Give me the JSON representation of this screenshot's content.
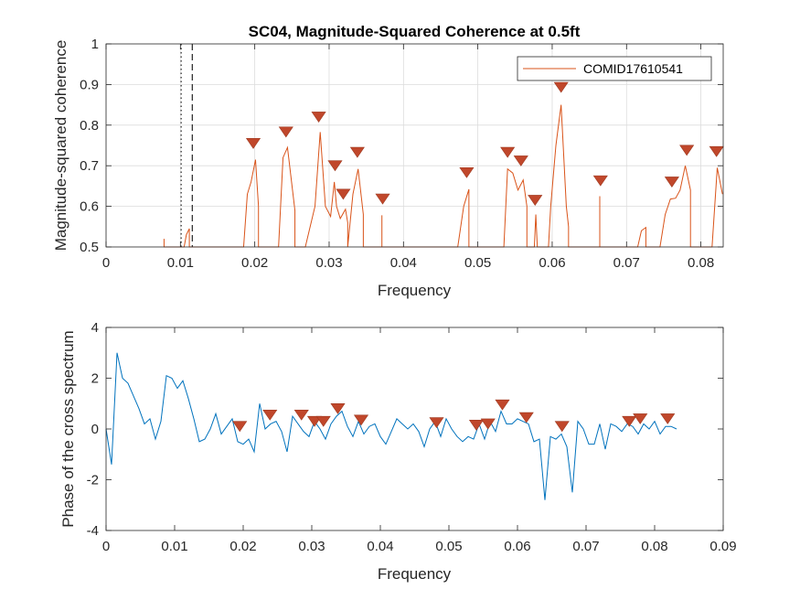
{
  "colors": {
    "coherence": "#D95319",
    "phase": "#0072BD",
    "marker": "#C0472B",
    "grid": "#DCDCDC",
    "axis": "#262626",
    "vline": "#333333"
  },
  "chart_data": [
    {
      "type": "line",
      "title": "SC04, Magnitude-Squared Coherence at 0.5ft",
      "xlabel": "Frequency",
      "ylabel": "Magnitude-squared coherence",
      "xlim": [
        0,
        0.083
      ],
      "ylim": [
        0.5,
        1
      ],
      "xticks": [
        0,
        0.01,
        0.02,
        0.03,
        0.04,
        0.05,
        0.06,
        0.07,
        0.08
      ],
      "xtick_labels": [
        "0",
        "0.01",
        "0.02",
        "0.03",
        "0.04",
        "0.05",
        "0.06",
        "0.07",
        "0.08"
      ],
      "yticks": [
        0.5,
        0.6,
        0.7,
        0.8,
        0.9,
        1
      ],
      "ytick_labels": [
        "0.5",
        "0.6",
        "0.7",
        "0.8",
        "0.9",
        "1"
      ],
      "grid": true,
      "legend": {
        "placement": "top-right",
        "entries": [
          "COMID17610541"
        ]
      },
      "series": [
        {
          "name": "COMID17610541",
          "x": [
            0.0078,
            0.0078,
            0.0078,
            0.0105,
            0.0108,
            0.0112,
            0.0112,
            0.0185,
            0.019,
            0.0195,
            0.0201,
            0.0205,
            0.0205,
            0.0232,
            0.0238,
            0.0244,
            0.0254,
            0.0254,
            0.0268,
            0.0281,
            0.0288,
            0.0295,
            0.0302,
            0.0307,
            0.031,
            0.0315,
            0.0322,
            0.0325,
            0.0325,
            0.0332,
            0.0339,
            0.0346,
            0.0346,
            0.0371,
            0.0371,
            0.0371,
            0.0473,
            0.0481,
            0.0488,
            0.0488,
            0.0535,
            0.054,
            0.0547,
            0.0554,
            0.0561,
            0.0566,
            0.0566,
            0.0576,
            0.0578,
            0.058,
            0.0595,
            0.0598,
            0.0605,
            0.0612,
            0.0619,
            0.0622,
            0.0622,
            0.0664,
            0.0664,
            0.0664,
            0.0715,
            0.072,
            0.0726,
            0.0726,
            0.0745,
            0.0752,
            0.0759,
            0.0766,
            0.0772,
            0.0779,
            0.0786,
            0.0786,
            0.0815,
            0.0822,
            0.0829
          ],
          "y": [
            0.5,
            0.52,
            0.5,
            0.5,
            0.53,
            0.545,
            0.5,
            0.5,
            0.63,
            0.66,
            0.715,
            0.6,
            0.5,
            0.5,
            0.72,
            0.745,
            0.59,
            0.5,
            0.5,
            0.6,
            0.783,
            0.6,
            0.575,
            0.66,
            0.6,
            0.57,
            0.593,
            0.56,
            0.5,
            0.63,
            0.692,
            0.58,
            0.5,
            0.5,
            0.578,
            0.5,
            0.5,
            0.6,
            0.642,
            0.5,
            0.5,
            0.692,
            0.682,
            0.64,
            0.665,
            0.6,
            0.5,
            0.5,
            0.58,
            0.5,
            0.5,
            0.6,
            0.75,
            0.85,
            0.6,
            0.55,
            0.5,
            0.5,
            0.625,
            0.5,
            0.5,
            0.54,
            0.548,
            0.5,
            0.5,
            0.58,
            0.618,
            0.62,
            0.64,
            0.7,
            0.64,
            0.5,
            0.5,
            0.695,
            0.63
          ],
          "color": "#D95319"
        }
      ],
      "markers": {
        "x": [
          0.0198,
          0.0242,
          0.0286,
          0.0308,
          0.0319,
          0.0338,
          0.0372,
          0.0485,
          0.054,
          0.0558,
          0.0577,
          0.0612,
          0.0665,
          0.0761,
          0.0781,
          0.0821
        ],
        "y": [
          0.755,
          0.783,
          0.82,
          0.7,
          0.63,
          0.733,
          0.618,
          0.683,
          0.733,
          0.712,
          0.615,
          0.893,
          0.663,
          0.66,
          0.738,
          0.735
        ]
      },
      "reference_lines": [
        {
          "x": 0.0101,
          "style": "dotted"
        },
        {
          "x": 0.0116,
          "style": "dashed"
        }
      ]
    },
    {
      "type": "line",
      "title": "",
      "xlabel": "Frequency",
      "ylabel": "Phase of the cross spectrum",
      "xlim": [
        0,
        0.09
      ],
      "ylim": [
        -4,
        4
      ],
      "xticks": [
        0,
        0.01,
        0.02,
        0.03,
        0.04,
        0.05,
        0.06,
        0.07,
        0.08,
        0.09
      ],
      "xtick_labels": [
        "0",
        "0.01",
        "0.02",
        "0.03",
        "0.04",
        "0.05",
        "0.06",
        "0.07",
        "0.08",
        "0.09"
      ],
      "yticks": [
        -4,
        -2,
        0,
        2,
        4
      ],
      "ytick_labels": [
        "-4",
        "-2",
        "0",
        "2",
        "4"
      ],
      "grid": false,
      "series": [
        {
          "x": [
            0,
            0.0008,
            0.0016,
            0.0024,
            0.0032,
            0.004,
            0.0048,
            0.0056,
            0.0064,
            0.0072,
            0.008,
            0.0088,
            0.0096,
            0.0104,
            0.0112,
            0.012,
            0.0128,
            0.0136,
            0.0144,
            0.0152,
            0.016,
            0.0168,
            0.0176,
            0.0184,
            0.0192,
            0.02,
            0.0208,
            0.0216,
            0.0224,
            0.0232,
            0.024,
            0.0248,
            0.0256,
            0.0264,
            0.0272,
            0.028,
            0.0288,
            0.0296,
            0.0304,
            0.0312,
            0.032,
            0.0328,
            0.0336,
            0.0344,
            0.0352,
            0.036,
            0.0368,
            0.0376,
            0.0384,
            0.0392,
            0.04,
            0.0408,
            0.0416,
            0.0424,
            0.0432,
            0.044,
            0.0448,
            0.0456,
            0.0464,
            0.0472,
            0.048,
            0.0488,
            0.0496,
            0.0504,
            0.0512,
            0.052,
            0.0528,
            0.0536,
            0.0544,
            0.0552,
            0.056,
            0.0568,
            0.0576,
            0.0584,
            0.0592,
            0.06,
            0.0608,
            0.0616,
            0.0624,
            0.0632,
            0.064,
            0.0648,
            0.0656,
            0.0664,
            0.0672,
            0.068,
            0.0688,
            0.0696,
            0.0704,
            0.0712,
            0.072,
            0.0728,
            0.0736,
            0.0744,
            0.0752,
            0.076,
            0.0768,
            0.0776,
            0.0784,
            0.0792,
            0.08,
            0.0808,
            0.0816,
            0.0824,
            0.0832
          ],
          "y": [
            0.0,
            -1.4,
            3.0,
            2.0,
            1.8,
            1.3,
            0.8,
            0.2,
            0.4,
            -0.4,
            0.3,
            2.1,
            2.0,
            1.6,
            1.9,
            1.2,
            0.4,
            -0.5,
            -0.4,
            0.0,
            0.6,
            -0.2,
            0.1,
            0.4,
            -0.5,
            -0.6,
            -0.4,
            -0.9,
            1.0,
            0.0,
            0.2,
            0.3,
            -0.1,
            -0.9,
            0.5,
            0.2,
            -0.1,
            -0.3,
            0.3,
            0.0,
            -0.4,
            0.2,
            0.5,
            0.7,
            0.1,
            -0.3,
            0.3,
            -0.2,
            0.1,
            0.2,
            -0.3,
            -0.6,
            -0.1,
            0.4,
            0.2,
            0.0,
            0.2,
            -0.1,
            -0.7,
            0.0,
            0.3,
            -0.3,
            0.4,
            0.0,
            -0.3,
            -0.5,
            -0.3,
            -0.4,
            0.2,
            -0.4,
            0.3,
            -0.1,
            0.7,
            0.2,
            0.2,
            0.4,
            0.3,
            0.2,
            -0.5,
            -0.4,
            -2.8,
            -0.3,
            -0.4,
            -0.2,
            -0.7,
            -2.5,
            0.3,
            0.0,
            -0.6,
            -0.6,
            0.2,
            -0.8,
            0.2,
            0.1,
            -0.1,
            0.2,
            0.1,
            -0.2,
            0.2,
            0.0,
            0.3,
            -0.2,
            0.1,
            0.1,
            0.0
          ],
          "color": "#0072BD"
        }
      ],
      "markers": {
        "x": [
          0.0195,
          0.0239,
          0.0285,
          0.0304,
          0.0317,
          0.0338,
          0.0372,
          0.0482,
          0.054,
          0.0557,
          0.0578,
          0.0613,
          0.0665,
          0.0763,
          0.0779,
          0.0819
        ],
        "y": [
          0.1,
          0.55,
          0.55,
          0.3,
          0.3,
          0.8,
          0.35,
          0.25,
          0.15,
          0.2,
          0.95,
          0.45,
          0.1,
          0.3,
          0.4,
          0.4
        ]
      }
    }
  ]
}
